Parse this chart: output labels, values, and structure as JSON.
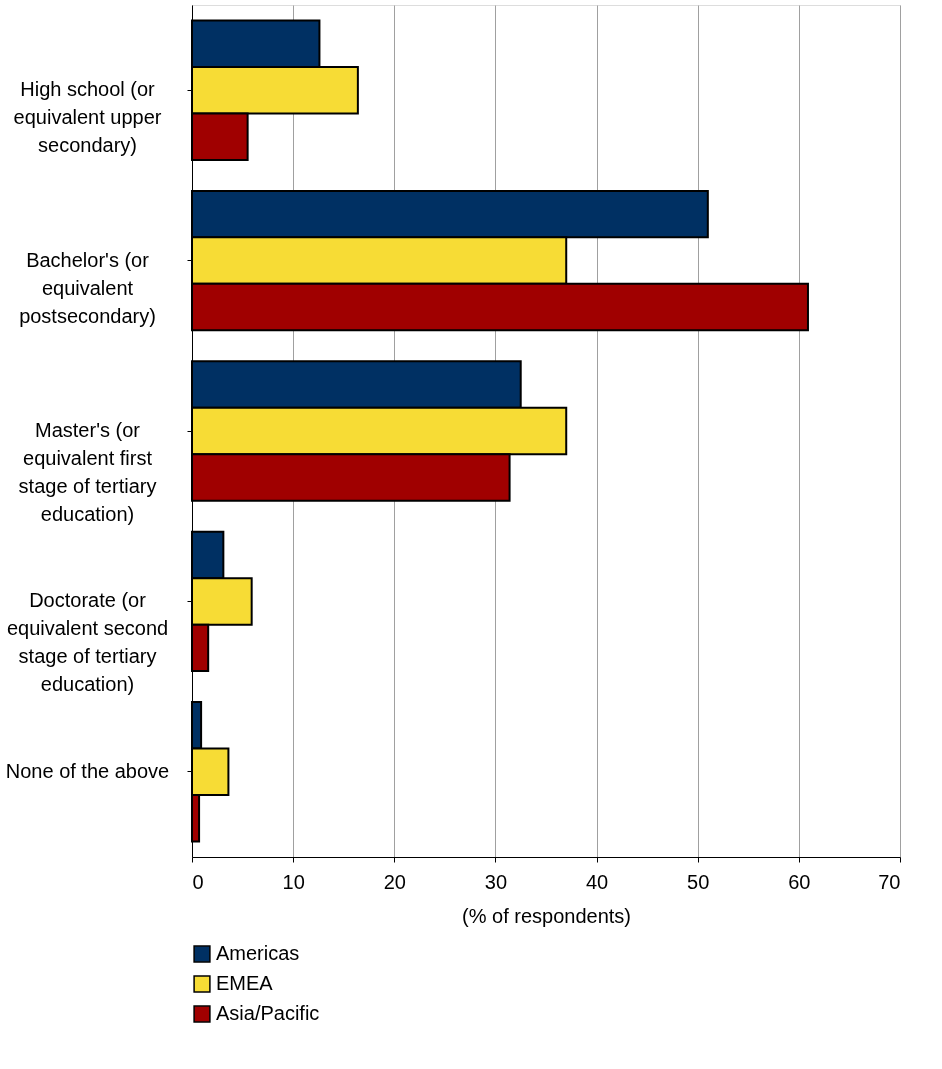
{
  "chart_data": {
    "type": "bar",
    "orientation": "horizontal",
    "xlabel": "(% of respondents)",
    "categories": [
      "High school (or equivalent upper secondary)",
      "Bachelor's (or equivalent postsecondary)",
      "Master's (or equivalent first stage of tertiary education)",
      "Doctorate (or equivalent second stage of tertiary education)",
      "None of the above"
    ],
    "series": [
      {
        "name": "Americas",
        "color": "#003063",
        "values": [
          12.6,
          51.0,
          32.5,
          3.1,
          0.9
        ]
      },
      {
        "name": "EMEA",
        "color": "#f7dc35",
        "values": [
          16.4,
          37.0,
          37.0,
          5.9,
          3.6
        ]
      },
      {
        "name": "Asia/Pacific",
        "color": "#a00000",
        "values": [
          5.5,
          60.9,
          31.4,
          1.6,
          0.7
        ]
      }
    ],
    "xlim": [
      0,
      70
    ],
    "xticks": [
      0,
      10,
      20,
      30,
      40,
      50,
      60,
      70
    ],
    "grid": "x",
    "legend": "bottom"
  }
}
